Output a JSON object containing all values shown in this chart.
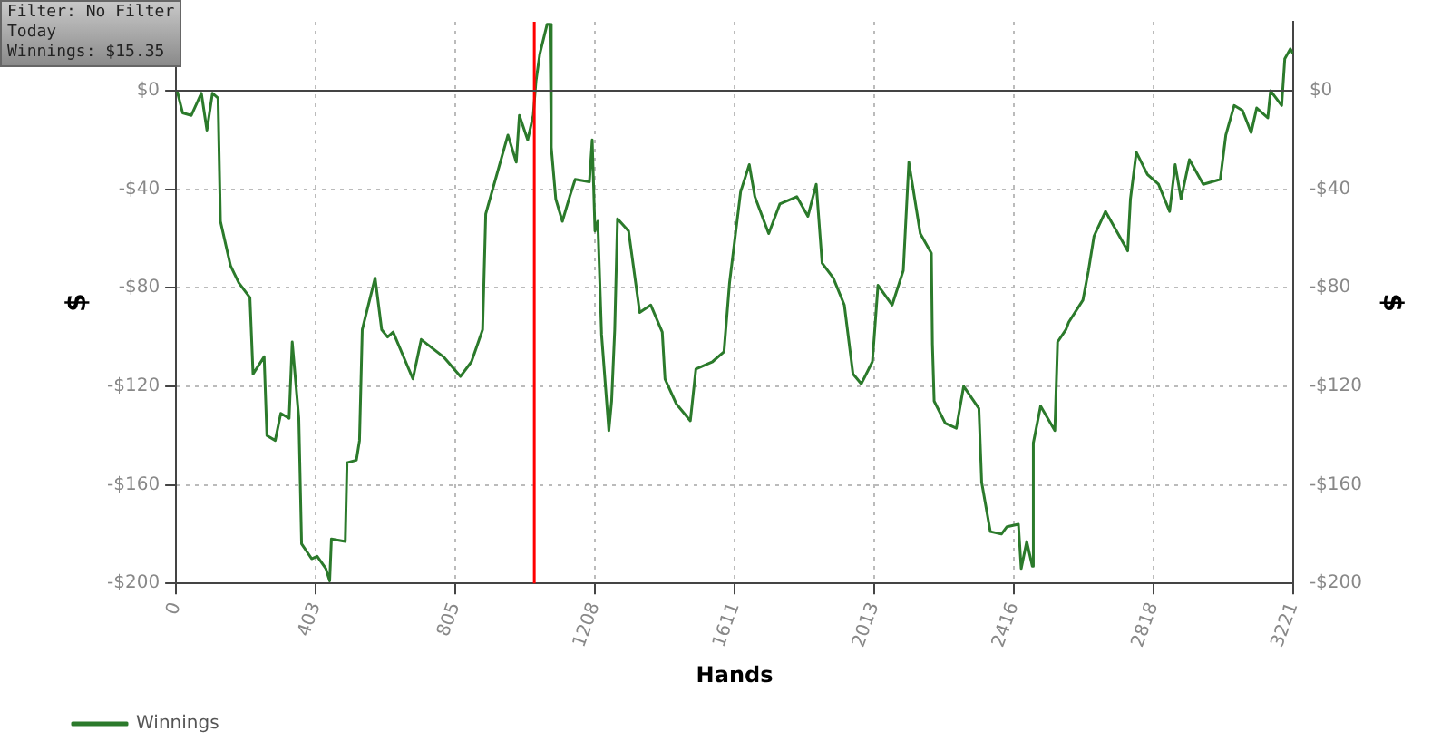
{
  "chart_data": {
    "type": "line",
    "xlabel": "Hands",
    "ylabel": "$",
    "y2label": "$",
    "annotations": [
      "Filter: No Filter",
      "Today",
      "Winnings: $15.35"
    ],
    "x": [
      3,
      19,
      44,
      73,
      89,
      105,
      121,
      128,
      157,
      181,
      213,
      222,
      254,
      262,
      286,
      302,
      326,
      335,
      354,
      362,
      391,
      407,
      432,
      443,
      448,
      488,
      493,
      520,
      529,
      537,
      574,
      593,
      610,
      626,
      683,
      707,
      771,
      820,
      852,
      884,
      893,
      917,
      957,
      981,
      990,
      1014,
      1030,
      1038,
      1049,
      1070,
      1078,
      1082,
      1095,
      1114,
      1135,
      1151,
      1192,
      1200,
      1208,
      1216,
      1227,
      1248,
      1256,
      1265,
      1273,
      1305,
      1337,
      1369,
      1402,
      1410,
      1442,
      1483,
      1499,
      1547,
      1580,
      1596,
      1628,
      1653,
      1669,
      1709,
      1741,
      1790,
      1822,
      1846,
      1863,
      1895,
      1927,
      1952,
      1976,
      2008,
      2024,
      2065,
      2097,
      2113,
      2146,
      2178,
      2181,
      2186,
      2218,
      2250,
      2271,
      2315,
      2323,
      2348,
      2380,
      2396,
      2429,
      2437,
      2453,
      2469,
      2472,
      2493,
      2534,
      2542,
      2566,
      2574,
      2615,
      2631,
      2647,
      2680,
      2712,
      2744,
      2752,
      2769,
      2801,
      2833,
      2865,
      2881,
      2898,
      2922,
      2962,
      3011,
      3027,
      3051,
      3075,
      3100,
      3116,
      3148,
      3156,
      3188,
      3197,
      3213,
      3221
    ],
    "series": [
      {
        "name": "Winnings",
        "color": "#2b7a2b",
        "values": [
          0,
          -9,
          -10,
          -1,
          -16,
          -1,
          -3,
          -53,
          -71,
          -78,
          -84,
          -115,
          -108,
          -140,
          -142,
          -131,
          -133,
          -102,
          -133,
          -184,
          -190,
          -189,
          -194,
          -199,
          -182,
          -183,
          -151,
          -150,
          -142,
          -97,
          -76,
          -97,
          -100,
          -98,
          -117,
          -101,
          -108,
          -116,
          -110,
          -97,
          -50,
          -38,
          -18,
          -29,
          -10,
          -20,
          -10,
          4,
          15,
          27,
          27,
          -23,
          -44,
          -53,
          -43,
          -36,
          -37,
          -20,
          -57,
          -53,
          -99,
          -138,
          -126,
          -97,
          -52,
          -57,
          -90,
          -87,
          -98,
          -117,
          -127,
          -134,
          -113,
          -110,
          -106,
          -78,
          -41,
          -30,
          -43,
          -58,
          -46,
          -43,
          -51,
          -38,
          -70,
          -76,
          -87,
          -115,
          -119,
          -110,
          -79,
          -87,
          -73,
          -29,
          -58,
          -66,
          -103,
          -126,
          -135,
          -137,
          -120,
          -129,
          -159,
          -179,
          -180,
          -177,
          -176,
          -194,
          -183,
          -193,
          -143,
          -128,
          -138,
          -102,
          -97,
          -94,
          -85,
          -73,
          -59,
          -49,
          -57,
          -65,
          -44,
          -25,
          -34,
          -38,
          -49,
          -30,
          -44,
          -28,
          -38,
          -36,
          -18,
          -6,
          -8,
          -17,
          -7,
          -11,
          0,
          -6,
          13,
          17,
          15
        ]
      }
    ],
    "xlim": [
      0,
      3221
    ],
    "xticks": [
      0,
      403,
      805,
      1208,
      1611,
      2013,
      2416,
      2818,
      3221
    ],
    "ylim": [
      -200,
      28
    ],
    "yticks": [
      {
        "value": -200,
        "label": "-$200"
      },
      {
        "value": -160,
        "label": "-$160"
      },
      {
        "value": -120,
        "label": "-$120"
      },
      {
        "value": -80,
        "label": "-$80"
      },
      {
        "value": -40,
        "label": "-$40"
      },
      {
        "value": 0,
        "label": "$0"
      }
    ],
    "y2lim": [
      -200,
      28
    ],
    "y2ticks": [
      {
        "value": -200,
        "label": "-$200"
      },
      {
        "value": -160,
        "label": "-$160"
      },
      {
        "value": -120,
        "label": "-$120"
      },
      {
        "value": -80,
        "label": "-$80"
      },
      {
        "value": -40,
        "label": "-$40"
      },
      {
        "value": 0,
        "label": "$0"
      }
    ],
    "ref_lines": [
      {
        "axis": "x",
        "value": 1033,
        "color": "#ff0000"
      },
      {
        "axis": "y",
        "value": 0,
        "color": "#444444"
      }
    ],
    "grid": true,
    "legend": "bottom left",
    "marker": "none",
    "line_style": "solid"
  }
}
